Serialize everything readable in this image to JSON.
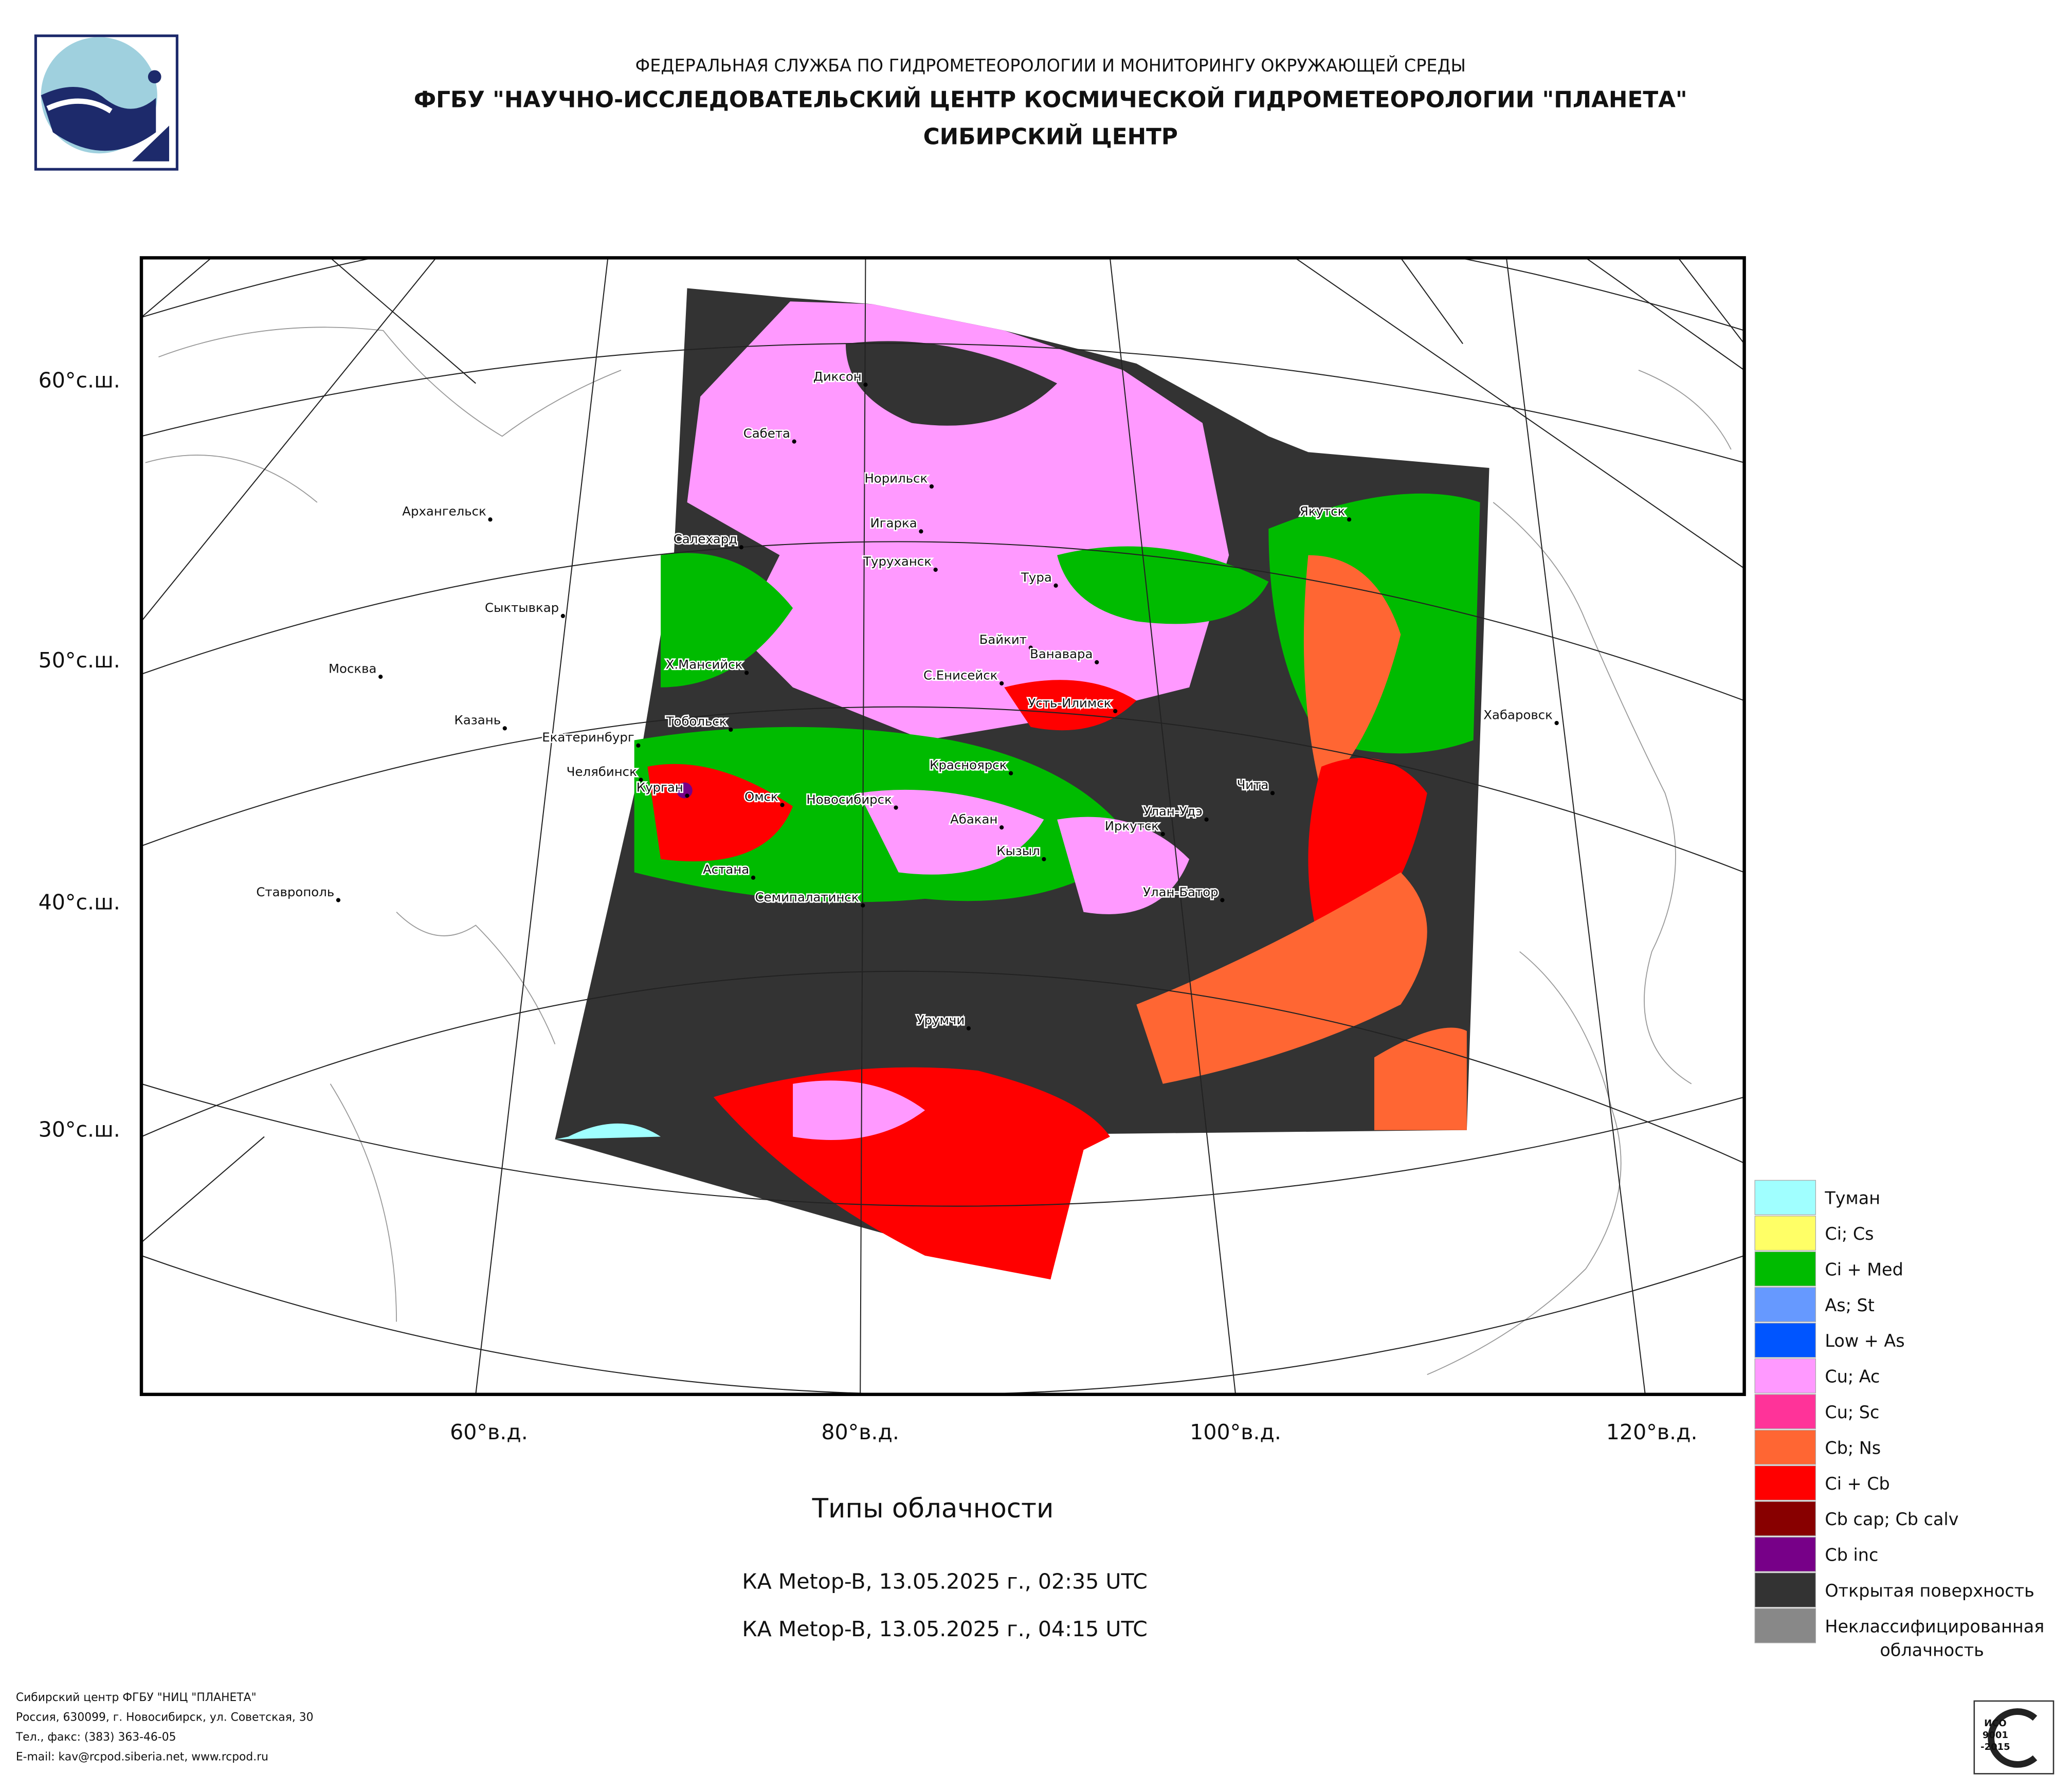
{
  "header": {
    "line1": "ФЕДЕРАЛЬНАЯ СЛУЖБА ПО ГИДРОМЕТЕОРОЛОГИИ И МОНИТОРИНГУ ОКРУЖАЮЩЕЙ СРЕДЫ",
    "line2": "ФГБУ \"НАУЧНО-ИССЛЕДОВАТЕЛЬСКИЙ ЦЕНТР КОСМИЧЕСКОЙ ГИДРОМЕТЕОРОЛОГИИ \"ПЛАНЕТА\"",
    "line3": "СИБИРСКИЙ ЦЕНТР"
  },
  "map": {
    "lat_labels": [
      "60°с.ш.",
      "50°с.ш.",
      "40°с.ш.",
      "30°с.ш."
    ],
    "lon_labels": [
      "60°в.д.",
      "80°в.д.",
      "100°в.д.",
      "120°в.д."
    ],
    "cities": [
      "Диксон",
      "Сабета",
      "Норильск",
      "Архангельск",
      "Игарка",
      "Салехард",
      "Туруханск",
      "Тура",
      "Якутск",
      "Сыктывкар",
      "Байкит",
      "Ванавара",
      "Москва",
      "Х.Мансийск",
      "С.Енисейск",
      "Усть-Илимск",
      "Хабаровск",
      "Казань",
      "Тобольск",
      "Екатеринбург",
      "Красноярск",
      "Челябинск",
      "Чита",
      "Курган",
      "Омск",
      "Новосибирск",
      "Улан-Удэ",
      "Абакан",
      "Иркутск",
      "Кызыл",
      "Астана",
      "Ставрополь",
      "Улан-Батор",
      "Семипалатинск",
      "Урумчи"
    ]
  },
  "legend": [
    {
      "lines": [
        "Туман"
      ],
      "color": "#a0ffff"
    },
    {
      "lines": [
        "Ci; Cs"
      ],
      "color": "#ffff66"
    },
    {
      "lines": [
        "Ci + Med"
      ],
      "color": "#00bb00"
    },
    {
      "lines": [
        "As; St"
      ],
      "color": "#6699ff"
    },
    {
      "lines": [
        "Low + As"
      ],
      "color": "#0055ff"
    },
    {
      "lines": [
        "Cu; Ac"
      ],
      "color": "#ff99ff"
    },
    {
      "lines": [
        "Cu; Sc"
      ],
      "color": "#ff3399"
    },
    {
      "lines": [
        "Cb; Ns"
      ],
      "color": "#ff6633"
    },
    {
      "lines": [
        "Ci + Cb"
      ],
      "color": "#ff0000"
    },
    {
      "lines": [
        "Cb cap; Cb calv"
      ],
      "color": "#880000"
    },
    {
      "lines": [
        "Cb inc"
      ],
      "color": "#770088"
    },
    {
      "lines": [
        "Открытая поверхность"
      ],
      "color": "#333333"
    },
    {
      "lines": [
        "Неклассифицированная",
        "облачность"
      ],
      "color": "#888888"
    }
  ],
  "title": "Типы облачности",
  "captions": [
    "КА Metop-B, 13.05.2025 г., 02:35 UTC",
    "КА Metop-B, 13.05.2025 г., 04:15 UTC"
  ],
  "footer": [
    "Сибирский центр ФГБУ \"НИЦ \"ПЛАНЕТА\"",
    "Россия, 630099, г. Новосибирск, ул. Советская, 30",
    "Тел., факс: (383) 363-46-05",
    "E-mail: kav@rcpod.siberia.net, www.rcpod.ru"
  ],
  "iso": [
    "ИСО",
    "9001",
    "-2015"
  ]
}
